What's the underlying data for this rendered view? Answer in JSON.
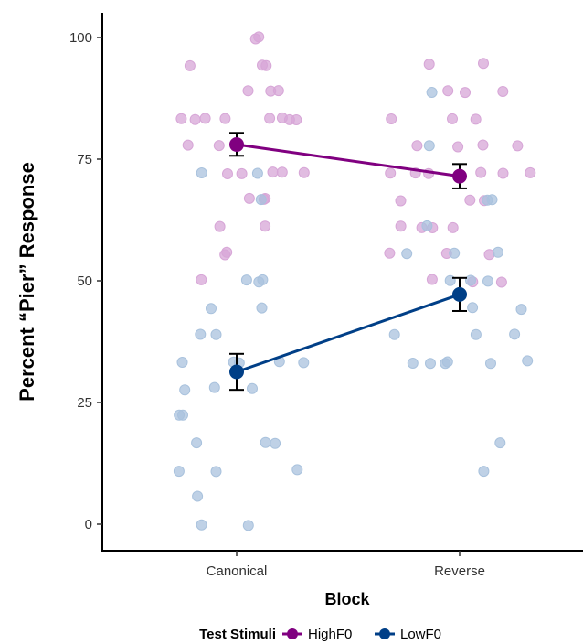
{
  "chart_data": {
    "type": "scatter",
    "xlabel": "Block",
    "ylabel": "Percent “Pier” Response",
    "categories": [
      "Canonical",
      "Reverse"
    ],
    "ylim": [
      -5,
      105
    ],
    "yticks": [
      0,
      25,
      50,
      75,
      100
    ],
    "grid": false,
    "legend": {
      "position": "bottom",
      "title": "Test Stimuli",
      "entries": [
        "HighF0",
        "LowF0"
      ]
    },
    "series": [
      {
        "name": "HighF0",
        "color": "#800080",
        "point_color": "#d7a6d7",
        "means": [
          78.0,
          71.5
        ],
        "error": [
          [
            75.7,
            80.4
          ],
          [
            69.0,
            74.0
          ]
        ],
        "points": [
          {
            "x": "Canonical",
            "y": [
              100,
              100,
              94.4,
              94.4,
              94.4,
              88.9,
              88.9,
              88.9,
              83.3,
              83.3,
              83.3,
              83.3,
              83.3,
              83.3,
              83.3,
              83.3,
              77.8,
              77.8,
              72.2,
              72.2,
              72.2,
              72.2,
              72.2,
              66.7,
              66.7,
              66.7,
              61.1,
              61.1,
              55.6,
              55.6,
              50
            ]
          },
          {
            "x": "Reverse",
            "y": [
              94.4,
              94.4,
              88.9,
              88.9,
              88.9,
              83.3,
              83.3,
              83.3,
              77.8,
              77.8,
              77.8,
              77.8,
              72.2,
              72.2,
              72.2,
              72.2,
              72.2,
              72.2,
              66.7,
              66.7,
              66.7,
              61.1,
              61.1,
              61.1,
              61.1,
              55.6,
              55.6,
              55.6,
              50,
              50,
              50
            ]
          }
        ]
      },
      {
        "name": "LowF0",
        "color": "#003f87",
        "point_color": "#a9c2dd",
        "means": [
          31.3,
          47.2
        ],
        "error": [
          [
            27.6,
            35.0
          ],
          [
            43.8,
            50.6
          ]
        ],
        "points": [
          {
            "x": "Canonical",
            "y": [
              72.2,
              72.2,
              66.7,
              50,
              50,
              50,
              44.4,
              44.4,
              38.9,
              38.9,
              33.3,
              33.3,
              33.3,
              33.3,
              33.3,
              27.8,
              27.8,
              27.8,
              22.2,
              22.2,
              16.7,
              16.7,
              16.7,
              11.1,
              11.1,
              11.1,
              5.6,
              0,
              0
            ]
          },
          {
            "x": "Reverse",
            "y": [
              88.9,
              77.8,
              66.7,
              66.7,
              61.1,
              55.6,
              55.6,
              55.6,
              50,
              50,
              50,
              44.4,
              44.4,
              38.9,
              38.9,
              38.9,
              33.3,
              33.3,
              33.3,
              33.3,
              33.3,
              33.3,
              16.7,
              11.1
            ]
          }
        ]
      }
    ]
  }
}
